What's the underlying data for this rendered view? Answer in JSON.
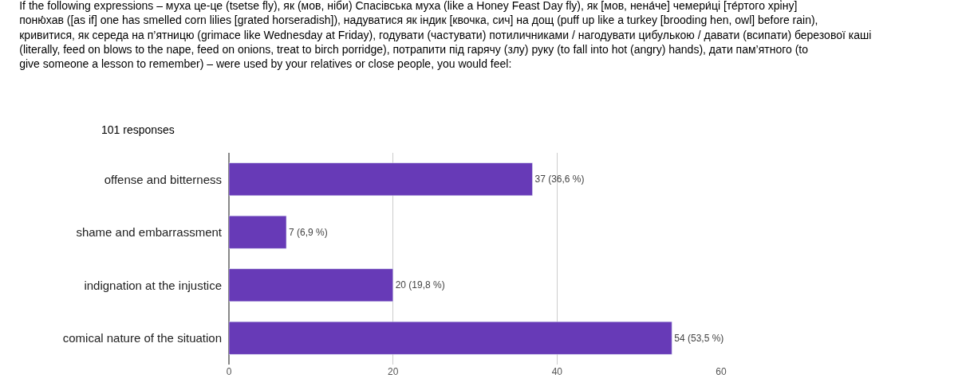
{
  "chart_data": {
    "type": "bar",
    "orientation": "horizontal",
    "title": "If the following expressions – муха це-це (tsetse fly), як (мов, ніби) Спасівська муха (like a Honey Feast Day fly), як [мов, нена́че] чемери́ці [те́ртого хрі́ну] поню́хав ([as if] one has smelled corn lilies [grated horseradish]), надуватися як індик [квочка, сич] на дощ (puff up like a turkey [brooding hen, owl] before rain), кривитися, як середа на п’ятницю (grimace like Wednesday at Friday), годувати (частувати) потиличниками / нагодувати цибулькою / давати (всипати) березової каші (literally, feed on blows to the nape, feed on onions, treat to birch porridge), потрапити під гарячу (злу) руку (to fall into hot (angry) hands), дати пам’ятного (to give someone a lesson to remember) – were used by your relatives or close people, you would feel:",
    "subtitle": "101 responses",
    "categories": [
      "offense and bitterness",
      "shame and embarrassment",
      "indignation at the injustice",
      "comical nature of the situation"
    ],
    "values": [
      37,
      7,
      20,
      54
    ],
    "value_labels": [
      "37 (36,6 %)",
      "7 (6,9 %)",
      "20 (19,8 %)",
      "54 (53,5 %)"
    ],
    "color": "#673ab7",
    "xlim": [
      0,
      60
    ],
    "xticks": [
      0,
      20,
      40,
      60
    ],
    "grid": "x"
  }
}
